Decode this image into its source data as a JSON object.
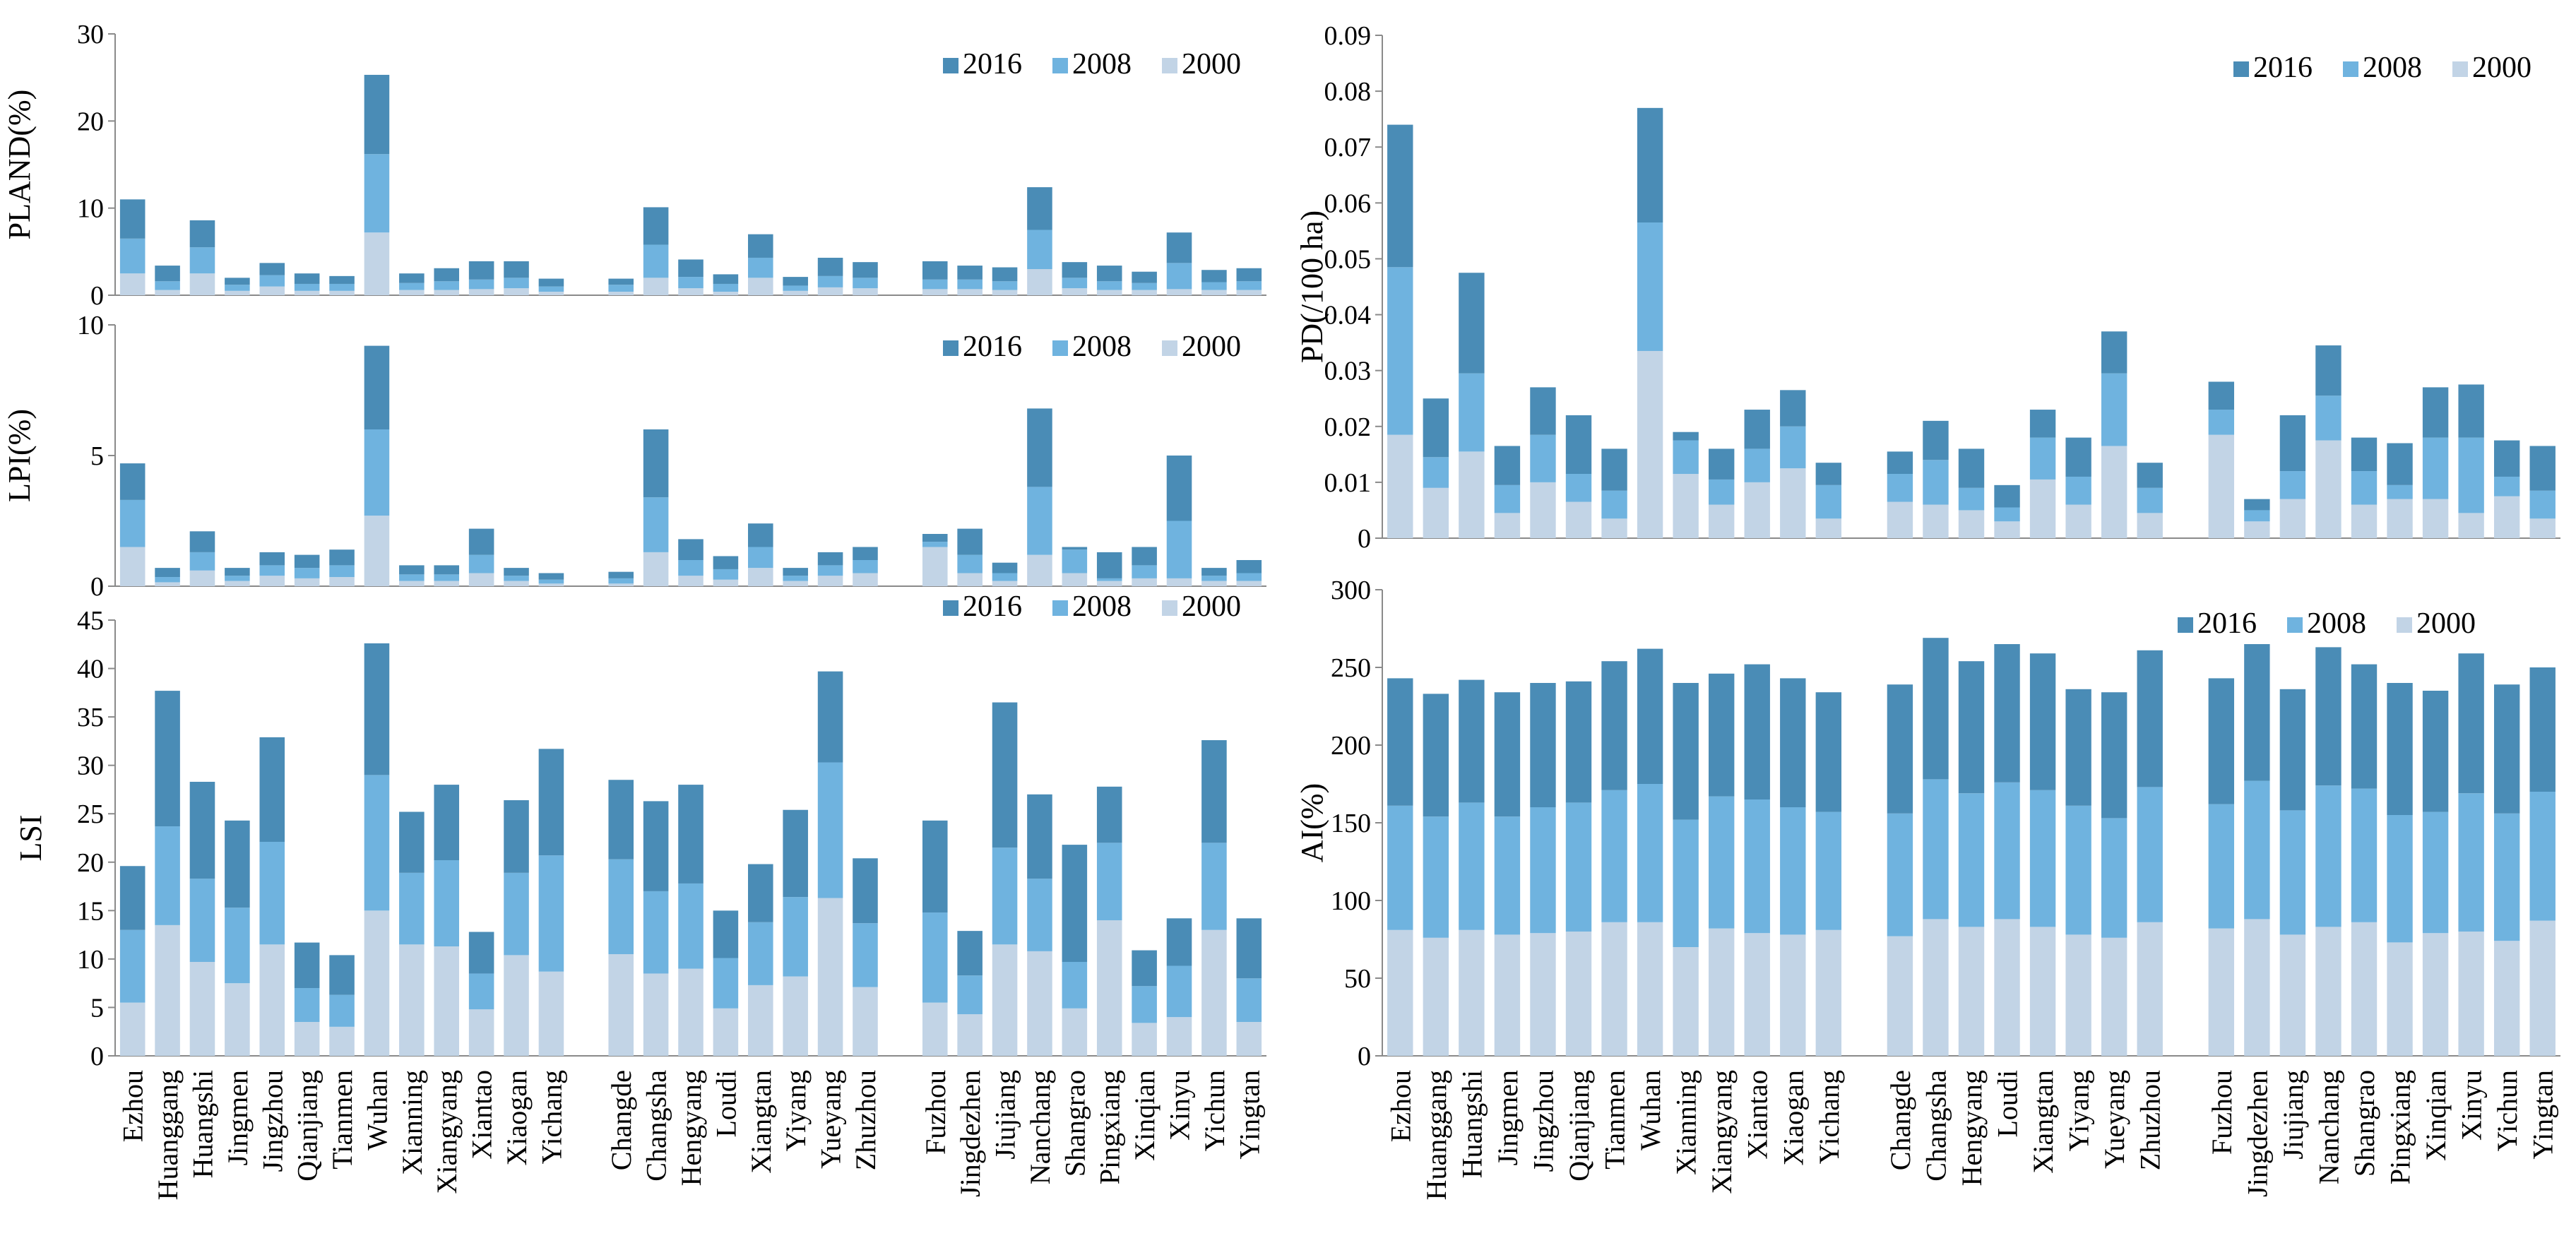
{
  "categories": [
    "Ezhou",
    "Huanggang",
    "Huangshi",
    "Jingmen",
    "Jingzhou",
    "Qianjiang",
    "Tianmen",
    "Wuhan",
    "Xianning",
    "Xiangyang",
    "Xiantao",
    "Xiaogan",
    "Yichang",
    "Changde",
    "Changsha",
    "Hengyang",
    "Loudi",
    "Xiangtan",
    "Yiyang",
    "Yueyang",
    "Zhuzhou",
    "Fuzhou",
    "Jingdezhen",
    "Jiujiang",
    "Nanchang",
    "Shangrao",
    "Pingxiang",
    "Xinqian",
    "Xinyu",
    "Yichun",
    "Yingtan"
  ],
  "groups": [
    13,
    8,
    10
  ],
  "colors": {
    "s2016": "#4a8cb6",
    "s2008": "#6fb3df",
    "s2000": "#c2d4e6"
  },
  "chart_data": [
    {
      "id": "pland",
      "type": "bar",
      "stacked": true,
      "ylabel": "PLAND(%)",
      "ylim": [
        0,
        30
      ],
      "yticks": [
        0,
        10,
        20,
        30
      ],
      "tick_decimals": 0,
      "legend": [
        "2016",
        "2008",
        "2000"
      ],
      "legend_position": "top-right",
      "series": [
        {
          "name": "2000",
          "values": [
            2.5,
            0.6,
            2.5,
            0.5,
            1.0,
            0.5,
            0.5,
            7.2,
            0.6,
            0.6,
            0.7,
            0.8,
            0.4,
            0.4,
            2.0,
            0.8,
            0.4,
            2.0,
            0.5,
            0.9,
            0.8,
            0.7,
            0.7,
            0.6,
            3.0,
            0.8,
            0.6,
            0.6,
            0.7,
            0.6,
            0.6
          ]
        },
        {
          "name": "2008",
          "values": [
            4.0,
            1.0,
            3.0,
            0.7,
            1.3,
            0.8,
            0.8,
            9.0,
            0.8,
            1.0,
            1.1,
            1.2,
            0.6,
            0.8,
            3.8,
            1.3,
            0.9,
            2.3,
            0.6,
            1.3,
            1.2,
            1.1,
            1.1,
            1.0,
            4.5,
            1.2,
            1.0,
            0.8,
            3.0,
            0.9,
            1.0
          ]
        },
        {
          "name": "2016",
          "values": [
            4.5,
            1.8,
            3.1,
            0.8,
            1.4,
            1.2,
            0.9,
            9.1,
            1.1,
            1.5,
            2.1,
            1.9,
            0.9,
            0.7,
            4.3,
            2.0,
            1.1,
            2.7,
            1.0,
            2.1,
            1.8,
            2.1,
            1.6,
            1.6,
            4.9,
            1.8,
            1.8,
            1.3,
            3.5,
            1.4,
            1.5
          ]
        }
      ]
    },
    {
      "id": "lpi",
      "type": "bar",
      "stacked": true,
      "ylabel": "LPI(%)",
      "ylim": [
        0,
        10
      ],
      "yticks": [
        0,
        5,
        10
      ],
      "tick_decimals": 0,
      "legend": [
        "2016",
        "2008",
        "2000"
      ],
      "legend_position": "top-right",
      "series": [
        {
          "name": "2000",
          "values": [
            1.5,
            0.15,
            0.6,
            0.2,
            0.4,
            0.3,
            0.35,
            2.7,
            0.2,
            0.2,
            0.5,
            0.2,
            0.1,
            0.1,
            1.3,
            0.4,
            0.25,
            0.7,
            0.2,
            0.4,
            0.5,
            1.5,
            0.5,
            0.2,
            1.2,
            0.5,
            0.2,
            0.3,
            0.3,
            0.2,
            0.2
          ]
        },
        {
          "name": "2008",
          "values": [
            1.8,
            0.2,
            0.7,
            0.2,
            0.4,
            0.4,
            0.45,
            3.3,
            0.25,
            0.25,
            0.7,
            0.2,
            0.15,
            0.2,
            2.1,
            0.6,
            0.4,
            0.8,
            0.2,
            0.4,
            0.5,
            0.2,
            0.7,
            0.3,
            2.6,
            0.9,
            0.1,
            0.5,
            2.2,
            0.2,
            0.3
          ]
        },
        {
          "name": "2016",
          "values": [
            1.4,
            0.35,
            0.8,
            0.3,
            0.5,
            0.5,
            0.6,
            3.2,
            0.35,
            0.35,
            1.0,
            0.3,
            0.25,
            0.25,
            2.6,
            0.8,
            0.5,
            0.9,
            0.3,
            0.5,
            0.5,
            0.3,
            1.0,
            0.4,
            3.0,
            0.1,
            1.0,
            0.7,
            2.5,
            0.3,
            0.5
          ]
        }
      ]
    },
    {
      "id": "lsi",
      "type": "bar",
      "stacked": true,
      "ylabel": "LSI",
      "ylim": [
        0,
        45
      ],
      "yticks": [
        0,
        5,
        10,
        15,
        20,
        25,
        30,
        35,
        40,
        45
      ],
      "tick_decimals": 0,
      "legend": [
        "2016",
        "2008",
        "2000"
      ],
      "legend_position": "top-right",
      "series": [
        {
          "name": "2000",
          "values": [
            5.5,
            13.5,
            9.7,
            7.5,
            11.5,
            3.5,
            3.0,
            15.0,
            11.5,
            11.3,
            4.8,
            10.4,
            8.7,
            10.5,
            8.5,
            9.0,
            4.9,
            7.3,
            8.2,
            16.3,
            7.1,
            5.5,
            4.3,
            11.5,
            10.8,
            4.9,
            14.0,
            3.4,
            4.0,
            13.0,
            3.5
          ]
        },
        {
          "name": "2008",
          "values": [
            7.5,
            10.2,
            8.6,
            7.8,
            10.6,
            3.5,
            3.3,
            14.0,
            7.4,
            8.9,
            3.7,
            8.5,
            12.0,
            9.8,
            8.5,
            8.8,
            5.2,
            6.5,
            8.2,
            14.0,
            6.6,
            9.3,
            4.0,
            10.0,
            7.5,
            4.8,
            8.0,
            3.8,
            5.3,
            9.0,
            4.5
          ]
        },
        {
          "name": "2016",
          "values": [
            6.6,
            14.0,
            10.0,
            9.0,
            10.8,
            4.7,
            4.1,
            13.6,
            6.3,
            7.8,
            4.3,
            7.5,
            11.0,
            8.2,
            9.3,
            10.2,
            4.9,
            6.0,
            9.0,
            9.4,
            6.7,
            9.5,
            4.6,
            15.0,
            8.7,
            12.1,
            5.8,
            3.7,
            4.9,
            10.6,
            6.2
          ]
        }
      ]
    },
    {
      "id": "pd",
      "type": "bar",
      "stacked": true,
      "ylabel": "PD(/100 ha)",
      "ylim": [
        0,
        0.09
      ],
      "yticks": [
        0,
        0.01,
        0.02,
        0.03,
        0.04,
        0.05,
        0.06,
        0.07,
        0.08,
        0.09
      ],
      "tick_decimals": 2,
      "legend": [
        "2016",
        "2008",
        "2000"
      ],
      "legend_position": "top-right",
      "series": [
        {
          "name": "2000",
          "values": [
            0.0185,
            0.009,
            0.0155,
            0.0045,
            0.01,
            0.0065,
            0.0035,
            0.0335,
            0.0115,
            0.006,
            0.01,
            0.0125,
            0.0035,
            0.0065,
            0.006,
            0.005,
            0.003,
            0.0105,
            0.006,
            0.0165,
            0.0045,
            0.0185,
            0.003,
            0.007,
            0.0175,
            0.006,
            0.007,
            0.007,
            0.0045,
            0.0075,
            0.0035
          ]
        },
        {
          "name": "2008",
          "values": [
            0.03,
            0.0055,
            0.014,
            0.005,
            0.0085,
            0.005,
            0.005,
            0.023,
            0.006,
            0.0045,
            0.006,
            0.0075,
            0.006,
            0.005,
            0.008,
            0.004,
            0.0025,
            0.0075,
            0.005,
            0.013,
            0.0045,
            0.0045,
            0.002,
            0.005,
            0.008,
            0.006,
            0.0025,
            0.011,
            0.0135,
            0.0035,
            0.005
          ]
        },
        {
          "name": "2016",
          "values": [
            0.0255,
            0.0105,
            0.018,
            0.007,
            0.0085,
            0.0105,
            0.0075,
            0.0205,
            0.0015,
            0.0055,
            0.007,
            0.0065,
            0.004,
            0.004,
            0.007,
            0.007,
            0.004,
            0.005,
            0.007,
            0.0075,
            0.0045,
            0.005,
            0.002,
            0.01,
            0.009,
            0.006,
            0.0075,
            0.009,
            0.0095,
            0.0065,
            0.008
          ]
        }
      ]
    },
    {
      "id": "ai",
      "type": "bar",
      "stacked": true,
      "ylabel": "AI(%)",
      "ylim": [
        0,
        300
      ],
      "yticks": [
        0,
        50,
        100,
        150,
        200,
        250,
        300
      ],
      "tick_decimals": 0,
      "legend": [
        "2016",
        "2008",
        "2000"
      ],
      "legend_position": "top-right",
      "series": [
        {
          "name": "2000",
          "values": [
            81,
            76,
            81,
            78,
            79,
            80,
            86,
            86,
            70,
            82,
            79,
            78,
            81,
            77,
            88,
            83,
            88,
            83,
            78,
            76,
            86,
            82,
            88,
            78,
            83,
            86,
            73,
            79,
            80,
            74,
            87
          ]
        },
        {
          "name": "2008",
          "values": [
            80,
            78,
            82,
            76,
            81,
            83,
            85,
            89,
            82,
            85,
            86,
            82,
            76,
            79,
            90,
            86,
            88,
            88,
            83,
            77,
            87,
            80,
            89,
            80,
            91,
            86,
            82,
            78,
            89,
            82,
            83
          ]
        },
        {
          "name": "2016",
          "values": [
            82,
            79,
            79,
            80,
            80,
            78,
            83,
            87,
            88,
            79,
            87,
            83,
            77,
            83,
            91,
            85,
            89,
            88,
            75,
            81,
            88,
            81,
            88,
            78,
            89,
            80,
            85,
            78,
            90,
            83,
            80
          ]
        }
      ]
    }
  ]
}
